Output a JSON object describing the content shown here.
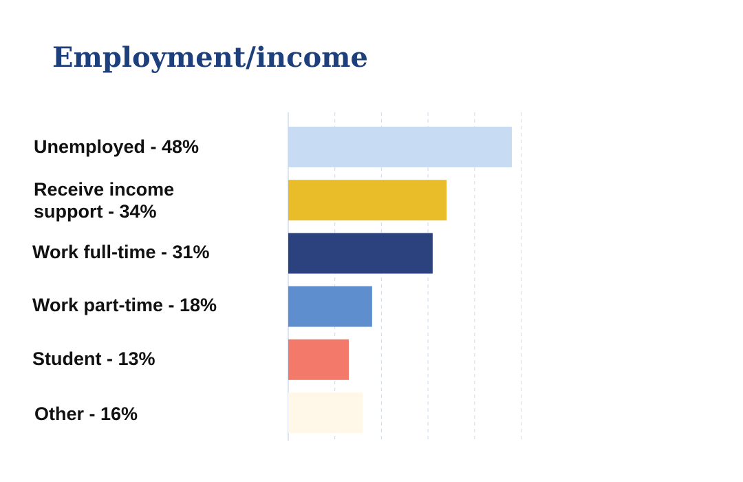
{
  "title": "Employment/income",
  "chart_data": {
    "type": "bar",
    "orientation": "horizontal",
    "title": "Employment/income",
    "categories": [
      "Unemployed - 48%",
      "Receive income support - 34%",
      "Work full-time - 31%",
      "Work part-time - 18%",
      "Student - 13%",
      "Other - 16%"
    ],
    "values": [
      48,
      34,
      31,
      18,
      13,
      16
    ],
    "colors": [
      "#c5daf1",
      "#e8b920",
      "#233a79",
      "#5789cb",
      "#f27565",
      "#fff8e8"
    ],
    "xlim": [
      0,
      50
    ],
    "grid": true,
    "legend": "none"
  }
}
